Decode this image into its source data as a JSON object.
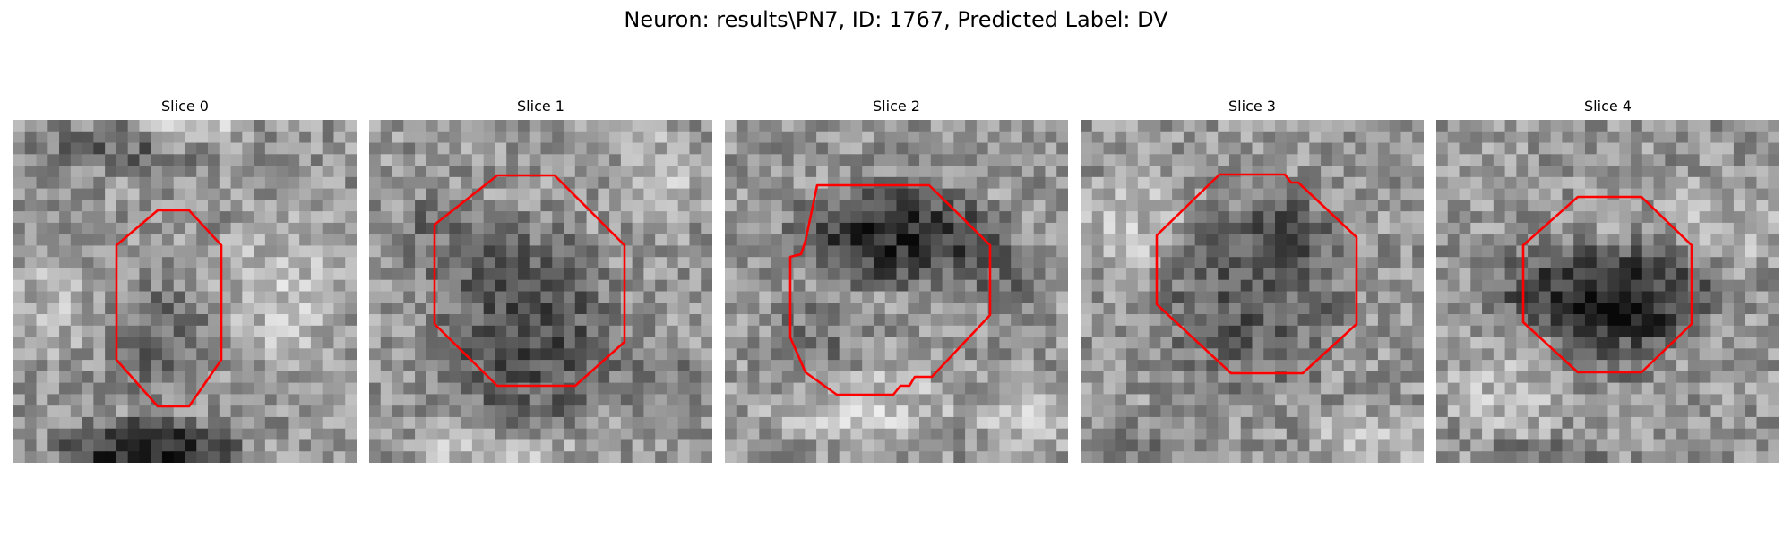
{
  "figure": {
    "title": "Neuron: results\\PN7, ID: 1767, Predicted Label: DV"
  },
  "panels": [
    {
      "title": "Slice 0"
    },
    {
      "title": "Slice 1"
    },
    {
      "title": "Slice 2"
    },
    {
      "title": "Slice 3"
    },
    {
      "title": "Slice 4"
    }
  ],
  "colors": {
    "contour": "#ff0000",
    "background": "#ffffff"
  }
}
